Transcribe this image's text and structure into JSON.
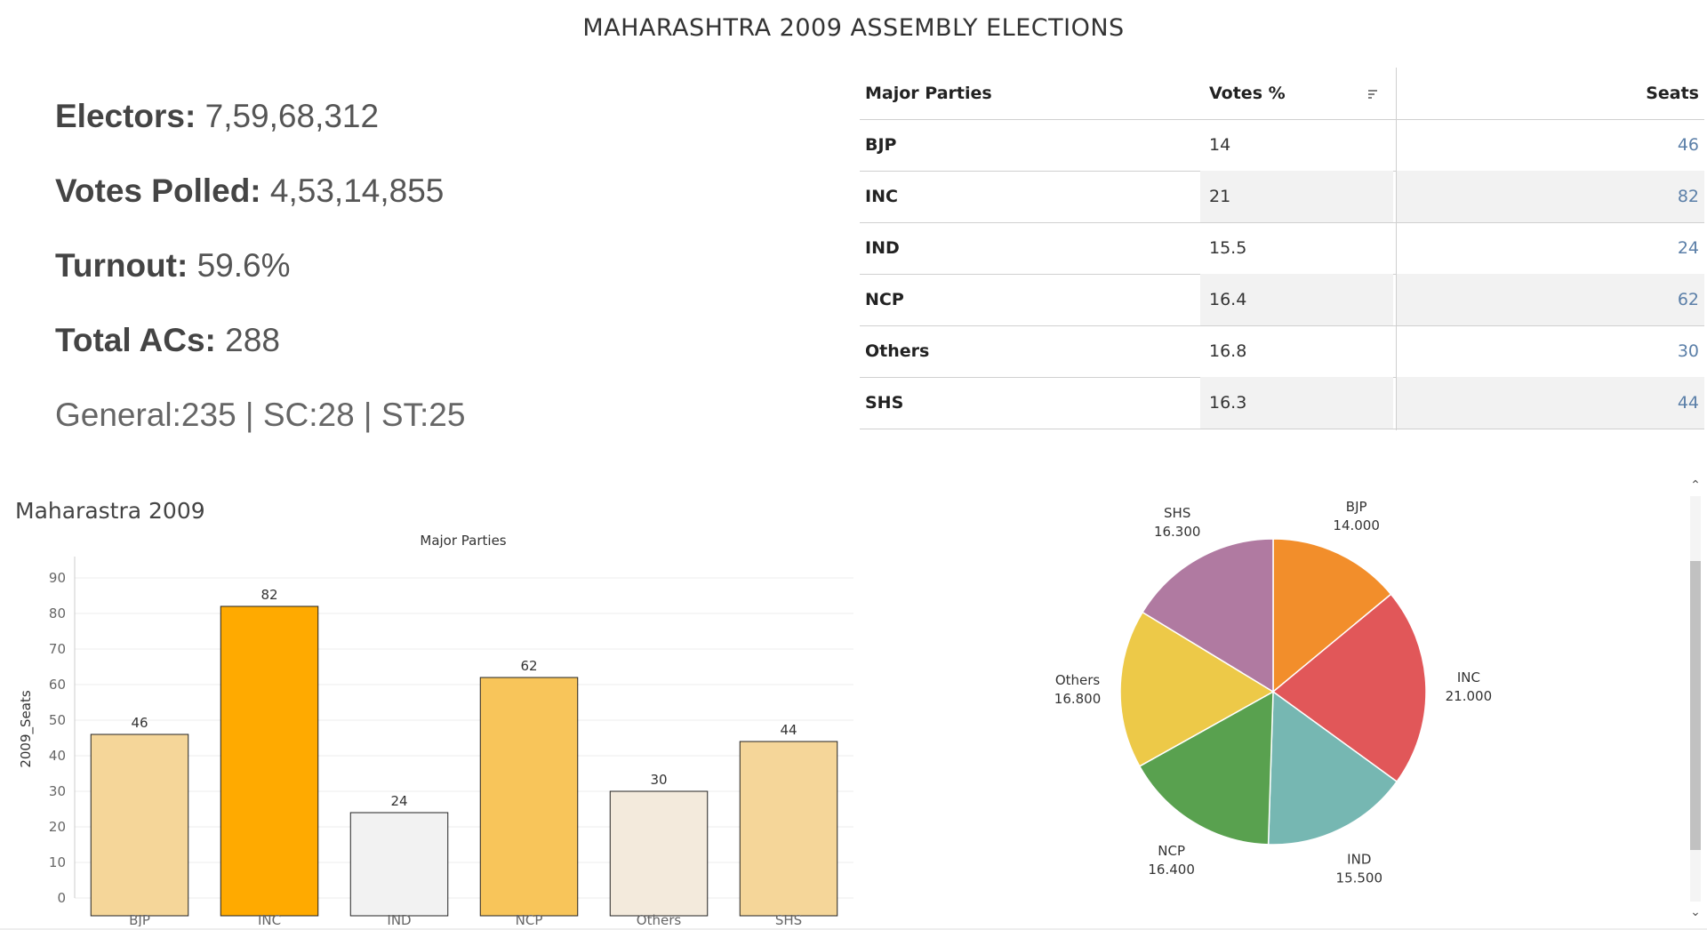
{
  "page": {
    "title": "MAHARASHTRA 2009 ASSEMBLY ELECTIONS"
  },
  "stats": {
    "electors_label": "Electors:",
    "electors_value": "7,59,68,312",
    "votes_label": "Votes Polled:",
    "votes_value": "4,53,14,855",
    "turnout_label": "Turnout:",
    "turnout_value": "59.6%",
    "acs_label": "Total ACs:",
    "acs_value": "288",
    "categories": "General:235 | SC:28 | ST:25"
  },
  "table": {
    "headers": [
      "Major Parties",
      "Votes %",
      "Seats"
    ],
    "rows": [
      {
        "party": "BJP",
        "votes": "14",
        "seats": "46"
      },
      {
        "party": "INC",
        "votes": "21",
        "seats": "82"
      },
      {
        "party": "IND",
        "votes": "15.5",
        "seats": "24"
      },
      {
        "party": "NCP",
        "votes": "16.4",
        "seats": "62"
      },
      {
        "party": "Others",
        "votes": "16.8",
        "seats": "30"
      },
      {
        "party": "SHS",
        "votes": "16.3",
        "seats": "44"
      }
    ]
  },
  "chart_data": [
    {
      "type": "bar",
      "title": "Maharastra 2009",
      "xlabel": "Major Parties",
      "ylabel": "2009_Seats",
      "categories": [
        "BJP",
        "INC",
        "IND",
        "NCP",
        "Others",
        "SHS"
      ],
      "values": [
        46,
        82,
        24,
        62,
        30,
        44
      ],
      "colors": [
        "#f5d699",
        "#ffaa00",
        "#f2f2f2",
        "#f8c55a",
        "#f3eadc",
        "#f5d699"
      ],
      "ylim": [
        0,
        90
      ],
      "yticks": [
        0,
        10,
        20,
        30,
        40,
        50,
        60,
        70,
        80,
        90
      ],
      "grid": true
    },
    {
      "type": "pie",
      "labels": [
        "BJP",
        "INC",
        "IND",
        "NCP",
        "Others",
        "SHS"
      ],
      "values": [
        14.0,
        21.0,
        15.5,
        16.4,
        16.8,
        16.3
      ],
      "value_labels": [
        "14.000",
        "21.000",
        "15.500",
        "16.400",
        "16.800",
        "16.300"
      ],
      "colors": [
        "#f28e2b",
        "#e15759",
        "#76b7b2",
        "#59a14f",
        "#edc948",
        "#b07aa1"
      ]
    }
  ]
}
